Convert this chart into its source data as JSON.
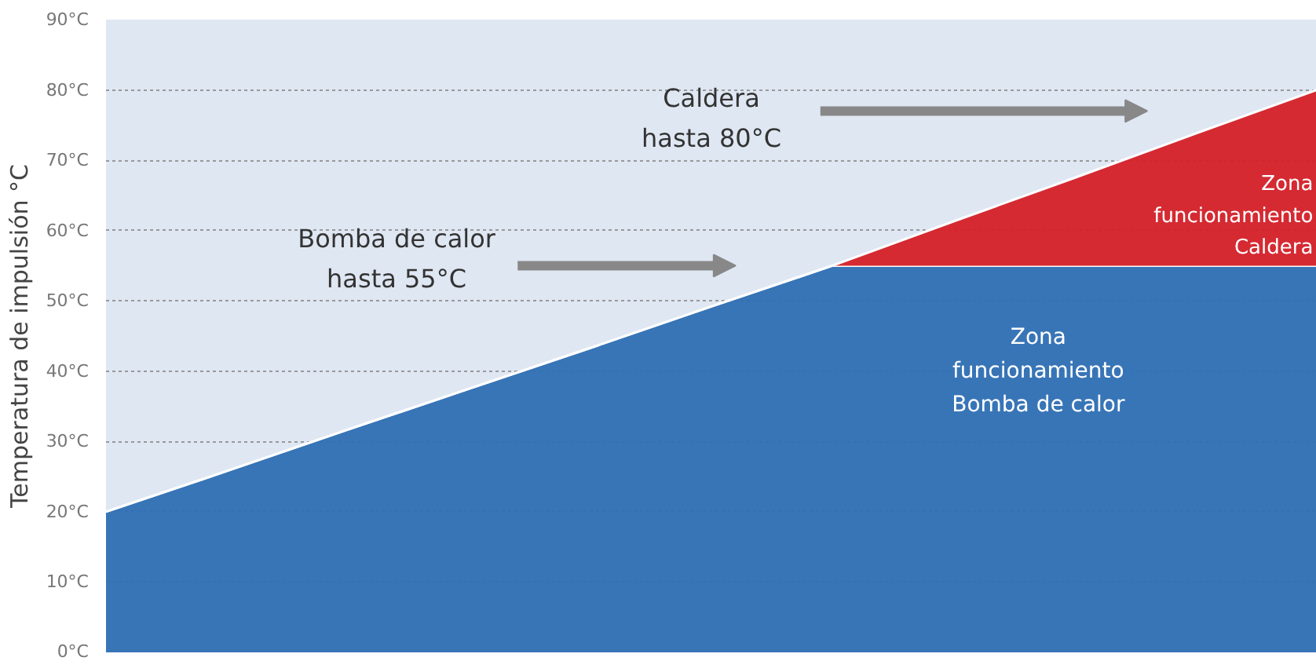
{
  "chart_data": {
    "type": "area",
    "stacked": true,
    "ylabel": "Temperatura de impulsión °C",
    "categories": [
      null,
      null,
      null,
      null,
      null,
      null,
      null,
      null,
      null,
      null,
      null
    ],
    "series": [
      {
        "color": "#2e6fb3",
        "values": [
          20,
          25.8,
          31.7,
          37.5,
          43.3,
          49.2,
          55,
          55,
          55,
          55,
          55
        ]
      },
      {
        "color": "#d42027",
        "values": [
          0,
          0,
          0,
          0,
          0,
          0,
          0,
          6.3,
          12.5,
          18.8,
          25
        ]
      }
    ],
    "ylim": [
      0,
      90
    ],
    "yticks": [
      {
        "value": 0,
        "label": "0°C"
      },
      {
        "value": 10,
        "label": "10°C"
      },
      {
        "value": 20,
        "label": "20°C"
      },
      {
        "value": 30,
        "label": "30°C"
      },
      {
        "value": 40,
        "label": "40°C"
      },
      {
        "value": 50,
        "label": "50°C"
      },
      {
        "value": 60,
        "label": "60°C"
      },
      {
        "value": 70,
        "label": "70°C"
      },
      {
        "value": 80,
        "label": "80°C"
      },
      {
        "value": 90,
        "label": "90°C"
      }
    ],
    "grid": "y",
    "tick_labels": "y",
    "annotations": [
      "Caldera\nhasta 80°C",
      "Bomba de calor\nhasta 55°C",
      "Zona\nfuncionamiento\nCaldera",
      "Zona\nfuncionamiento\nBomba de calor"
    ]
  }
}
